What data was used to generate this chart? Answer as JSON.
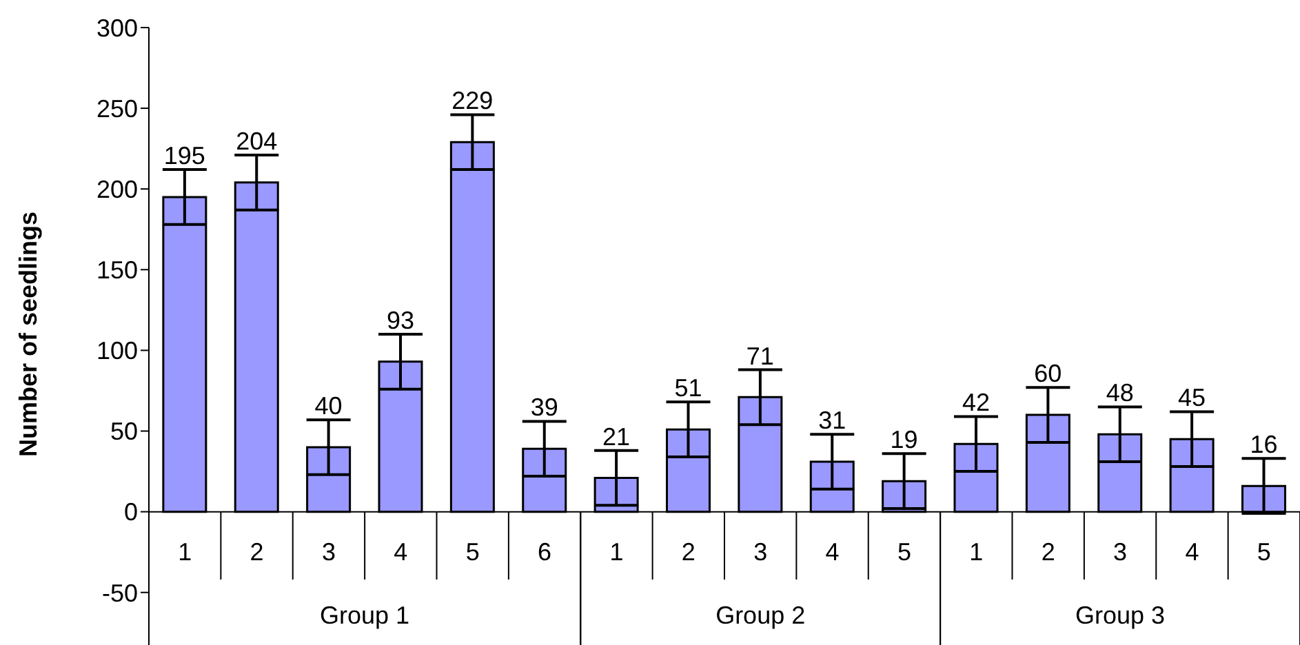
{
  "chart_data": {
    "type": "bar",
    "ylabel": "Number of seedlings",
    "categories": [
      "1",
      "2",
      "3",
      "4",
      "5",
      "6",
      "1",
      "2",
      "3",
      "4",
      "5",
      "1",
      "2",
      "3",
      "4",
      "5"
    ],
    "values": [
      195,
      204,
      40,
      93,
      229,
      39,
      21,
      51,
      71,
      31,
      19,
      42,
      60,
      48,
      45,
      16
    ],
    "errors": [
      17,
      17,
      17,
      17,
      17,
      17,
      17,
      17,
      17,
      17,
      17,
      17,
      17,
      17,
      17,
      17
    ],
    "color": "#9999ff",
    "data_labels": true,
    "grid": false,
    "legend": false,
    "ylim": [
      -80,
      300
    ],
    "yticks": [
      -50,
      0,
      50,
      100,
      150,
      200,
      250,
      300
    ],
    "annotations": [
      "Group 1",
      "Group 2",
      "Group 3"
    ]
  }
}
